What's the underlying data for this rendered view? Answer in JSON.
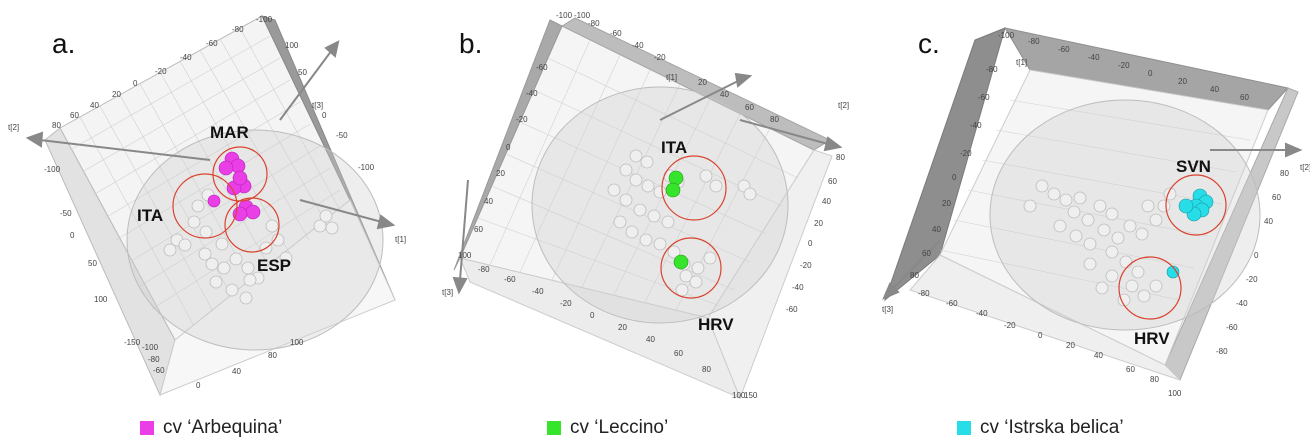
{
  "colors": {
    "arbequina": "#ea3ee6",
    "leccino": "#35e42b",
    "istrska": "#27dde8",
    "other": "#eeeeee",
    "circle": "#d9432f"
  },
  "chart_data": [
    {
      "type": "scatter",
      "panel": "a.",
      "axis_labels": [
        "t[1]",
        "t[2]",
        "t[3]"
      ],
      "ticks_top": [
        "-100",
        "-80",
        "-60",
        "-40",
        "-20",
        "0",
        "20",
        "40",
        "60",
        "80",
        "100"
      ],
      "ticks_right": [
        "100",
        "50",
        "0",
        "-50",
        "-100"
      ],
      "ticks_bottom": [
        "-150",
        "-100",
        "-80",
        "-60",
        "-40",
        "-20",
        "0",
        "20",
        "40",
        "60",
        "80",
        "100"
      ],
      "ticks_left": [
        "-100",
        "-50",
        "0",
        "50",
        "100",
        "-150"
      ],
      "groups": [
        {
          "label": "MAR",
          "highlight": "Arbequina"
        },
        {
          "label": "ITA",
          "highlight": "none"
        },
        {
          "label": "ESP",
          "highlight": "Arbequina"
        }
      ],
      "legend": "cv ‘Arbequina’"
    },
    {
      "type": "scatter",
      "panel": "b.",
      "axis_labels": [
        "t[1]",
        "t[2]",
        "t[3]"
      ],
      "ticks_top": [
        "-100",
        "-100",
        "-80",
        "-60",
        "-40",
        "-20",
        "0",
        "20",
        "40",
        "60",
        "80",
        "100"
      ],
      "ticks_right": [
        "100",
        "80",
        "60",
        "40",
        "20",
        "0",
        "-20",
        "-40",
        "-60",
        "-80"
      ],
      "ticks_bottom": [
        "100",
        "-80",
        "-60",
        "-40",
        "-20",
        "0",
        "20",
        "40",
        "60",
        "80",
        "100",
        "150"
      ],
      "ticks_left": [
        "-60",
        "-40",
        "-20",
        "0",
        "20",
        "40",
        "60",
        "80",
        "100"
      ],
      "groups": [
        {
          "label": "ITA",
          "highlight": "Leccino"
        },
        {
          "label": "HRV",
          "highlight": "Leccino"
        }
      ],
      "legend": "cv ‘Leccino’"
    },
    {
      "type": "scatter",
      "panel": "c.",
      "axis_labels": [
        "t[1]",
        "t[2]",
        "t[3]"
      ],
      "ticks_top": [
        "-100",
        "-100",
        "-80",
        "-60",
        "-40",
        "-20",
        "0",
        "20",
        "40",
        "60",
        "80",
        "100"
      ],
      "ticks_right": [
        "100",
        "80",
        "60",
        "40",
        "20",
        "0",
        "-20",
        "-40",
        "-60",
        "-80",
        "-100"
      ],
      "ticks_bottom": [
        "-80",
        "-60",
        "-40",
        "-20",
        "0",
        "20",
        "40",
        "60",
        "80",
        "100",
        "100"
      ],
      "ticks_left": [
        "-80",
        "-60",
        "-40",
        "-20",
        "0",
        "20",
        "40",
        "60",
        "80",
        "100"
      ],
      "groups": [
        {
          "label": "SVN",
          "highlight": "Istrska belica"
        },
        {
          "label": "HRV",
          "highlight": "Istrska belica"
        }
      ],
      "legend": "cv ‘Istrska belica’"
    }
  ]
}
